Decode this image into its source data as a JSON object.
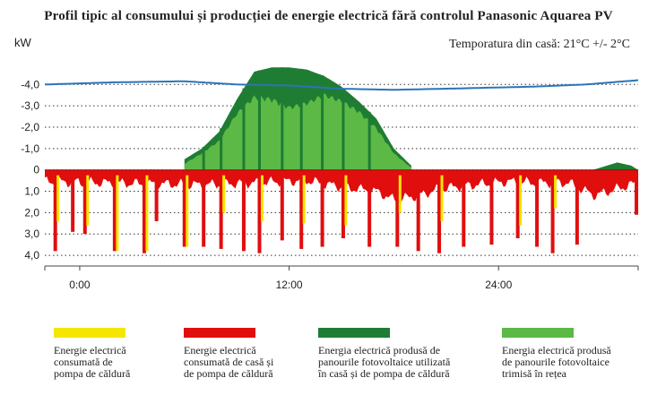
{
  "chart_data": {
    "type": "area",
    "title": "Profil tipic al consumului și producției de energie electrică fără controlul Panasonic Aquarea PV",
    "y_unit": "kW",
    "annotation": "Temporatura din casă: 21°C +/- 2°C",
    "yticks": [
      "-4,0",
      "-3,0",
      "-2,0",
      "-1,0",
      "0",
      "1,0",
      "2,0",
      "3,0",
      "4,0"
    ],
    "ylim": [
      -4.6,
      4.5
    ],
    "xticks": [
      {
        "label": "0:00",
        "hour": 0
      },
      {
        "label": "12:00",
        "hour": 12
      },
      {
        "label": "24:00",
        "hour": 24
      }
    ],
    "xlim": [
      -2,
      32
    ],
    "grid": "dotted horizontal",
    "series": [
      {
        "name": "Energie electrică consumată de pompa de căldură",
        "color": "#f5e600",
        "x": [
          -1.4,
          0.3,
          2.0,
          3.7,
          6.0,
          8.1,
          10.3,
          12.7,
          15.1,
          18.2,
          20.6,
          25.1,
          27.1
        ],
        "y": [
          2.4,
          2.6,
          3.8,
          3.8,
          3.6,
          2.0,
          2.4,
          2.5,
          2.6,
          2.0,
          2.4,
          2.6,
          1.8
        ]
      },
      {
        "name": "Energie electrică consumată de casă și de pompa de căldură",
        "color": "#e10e0e",
        "base_x": [
          -2,
          4,
          7,
          10,
          13,
          15,
          17,
          18,
          19.5,
          20.5,
          22,
          24.5,
          26,
          28,
          29.5,
          32
        ],
        "base_y": [
          0.55,
          0.65,
          0.7,
          0.6,
          0.5,
          0.8,
          1.0,
          1.4,
          1.2,
          0.9,
          0.75,
          0.55,
          0.6,
          0.6,
          1.2,
          0.6
        ],
        "spike_x": [
          -1.4,
          -0.4,
          0.3,
          2.0,
          3.7,
          4.4,
          6.0,
          7.1,
          8.1,
          9.4,
          10.3,
          11.6,
          12.7,
          13.9,
          15.1,
          16.6,
          18.2,
          19.4,
          20.6,
          22.0,
          23.6,
          25.1,
          26.2,
          27.1,
          28.5,
          31.9
        ],
        "spike_y": [
          3.8,
          2.9,
          3.0,
          3.8,
          3.9,
          2.4,
          3.6,
          3.6,
          3.7,
          3.8,
          3.9,
          3.3,
          3.7,
          3.6,
          3.2,
          3.6,
          3.6,
          3.8,
          3.9,
          3.6,
          3.5,
          3.2,
          3.6,
          3.9,
          3.5,
          2.1
        ]
      },
      {
        "name": "Energia electrică produsă de panourile fotovoltaice utilizată în casă și de pompa de căldură",
        "color": "#1e7d32",
        "x": [
          6,
          7,
          8,
          9,
          10,
          11,
          12,
          13,
          14,
          15,
          16,
          17,
          18,
          19
        ],
        "y": [
          -0.5,
          -1.0,
          -1.8,
          -3.3,
          -4.6,
          -4.8,
          -4.8,
          -4.7,
          -4.4,
          -3.9,
          -3.2,
          -2.4,
          -1.0,
          -0.2
        ]
      },
      {
        "name": "Energia electrică produsă de panourile fotovoltaice trimisă în rețea",
        "color": "#5cb946",
        "x": [
          6,
          7,
          8,
          9,
          10,
          11,
          12,
          13,
          14,
          15,
          16,
          17,
          18,
          19
        ],
        "y": [
          -0.3,
          -0.8,
          -1.4,
          -2.7,
          -3.5,
          -3.4,
          -3.0,
          -3.2,
          -3.6,
          -3.3,
          -2.8,
          -2.0,
          -0.8,
          -0.1
        ]
      },
      {
        "name": "Temporatura din casă",
        "color": "#2a74b8",
        "x": [
          -2,
          2,
          6,
          9,
          12,
          15,
          18,
          22,
          26,
          29,
          32
        ],
        "y": [
          -4.0,
          -4.1,
          -4.15,
          -4.0,
          -3.95,
          -3.8,
          -3.75,
          -3.82,
          -3.9,
          -4.0,
          -4.2
        ]
      }
    ]
  },
  "legend": [
    {
      "color": "#f5e600",
      "lines": [
        "Energie electrică",
        "consumată de",
        "pompa de căldură"
      ]
    },
    {
      "color": "#e10e0e",
      "lines": [
        "Energie electrică",
        "consumată de casă și",
        "de pompa de căldură"
      ]
    },
    {
      "color": "#1e7d32",
      "lines": [
        "Energia electrică produsă de",
        "panourile fotovoltaice utilizată",
        "în casă și de pompa de căldură"
      ]
    },
    {
      "color": "#5cb946",
      "lines": [
        "Energia electrică produsă",
        "de panourile fotovoltaice",
        "trimisă în rețea"
      ]
    }
  ]
}
